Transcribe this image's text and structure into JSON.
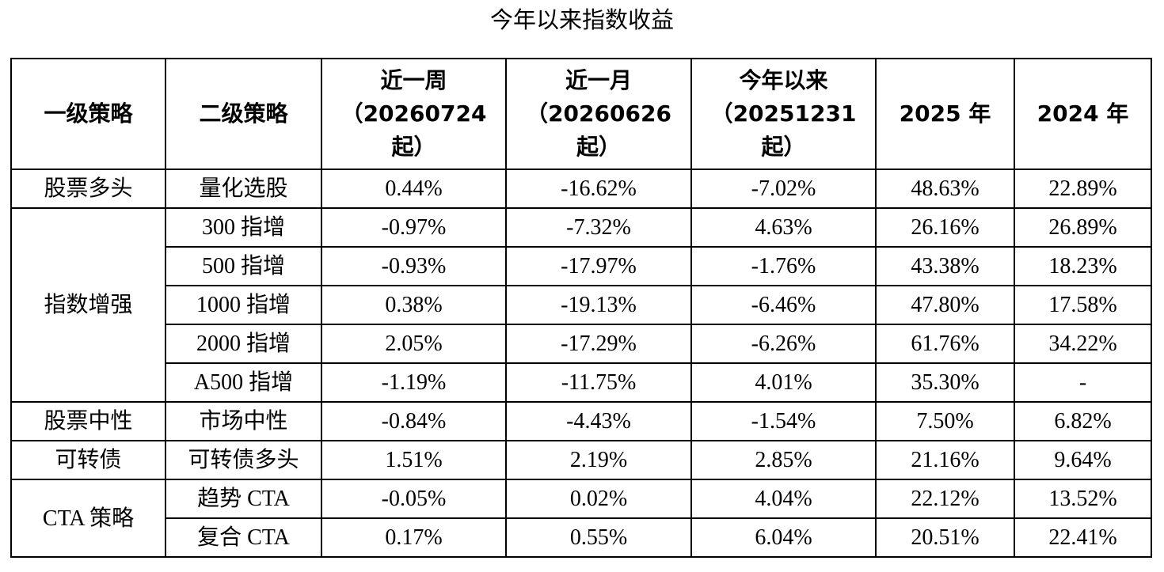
{
  "title": "今年以来指数收益",
  "table": {
    "header": [
      [
        "一级策略"
      ],
      [
        "二级策略"
      ],
      [
        "近一周",
        "（20260724",
        "起）"
      ],
      [
        "近一月",
        "（20260626",
        "起）"
      ],
      [
        "今年以来",
        "（20251231",
        "起）"
      ],
      [
        "2025 年"
      ],
      [
        "2024 年"
      ]
    ],
    "groups": [
      {
        "name": "股票多头",
        "rows": [
          {
            "sub": "量化选股",
            "values": [
              "0.44%",
              "-16.62%",
              "-7.02%",
              "48.63%",
              "22.89%"
            ]
          }
        ]
      },
      {
        "name": "指数增强",
        "rows": [
          {
            "sub": "300 指增",
            "values": [
              "-0.97%",
              "-7.32%",
              "4.63%",
              "26.16%",
              "26.89%"
            ]
          },
          {
            "sub": "500 指增",
            "values": [
              "-0.93%",
              "-17.97%",
              "-1.76%",
              "43.38%",
              "18.23%"
            ]
          },
          {
            "sub": "1000 指增",
            "values": [
              "0.38%",
              "-19.13%",
              "-6.46%",
              "47.80%",
              "17.58%"
            ]
          },
          {
            "sub": "2000 指增",
            "values": [
              "2.05%",
              "-17.29%",
              "-6.26%",
              "61.76%",
              "34.22%"
            ]
          },
          {
            "sub": "A500 指增",
            "values": [
              "-1.19%",
              "-11.75%",
              "4.01%",
              "35.30%",
              "-"
            ]
          }
        ]
      },
      {
        "name": "股票中性",
        "rows": [
          {
            "sub": "市场中性",
            "values": [
              "-0.84%",
              "-4.43%",
              "-1.54%",
              "7.50%",
              "6.82%"
            ]
          }
        ]
      },
      {
        "name": "可转债",
        "rows": [
          {
            "sub": "可转债多头",
            "values": [
              "1.51%",
              "2.19%",
              "2.85%",
              "21.16%",
              "9.64%"
            ]
          }
        ]
      },
      {
        "name": "CTA 策略",
        "rows": [
          {
            "sub": "趋势 CTA",
            "values": [
              "-0.05%",
              "0.02%",
              "4.04%",
              "22.12%",
              "13.52%"
            ]
          },
          {
            "sub": "复合 CTA",
            "values": [
              "0.17%",
              "0.55%",
              "6.04%",
              "20.51%",
              "22.41%"
            ]
          }
        ]
      }
    ]
  }
}
